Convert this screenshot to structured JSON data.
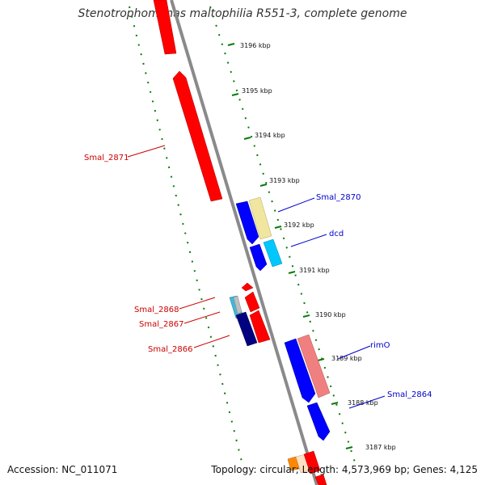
{
  "title": "Stenotrophomonas maltophilia R551-3, complete genome",
  "footer": {
    "accession": "Accession: NC_011071",
    "stats": "Topology: circular; Length: 4,573,969 bp; Genes: 4,125"
  },
  "ticks": [
    "3196 kbp",
    "3195 kbp",
    "3194 kbp",
    "3193 kbp",
    "3192 kbp",
    "3191 kbp",
    "3190 kbp",
    "3189 kbp",
    "3188 kbp",
    "3187 kbp"
  ],
  "labels": {
    "Smal_2871": "Smal_2871",
    "Smal_2870": "Smal_2870",
    "dcd": "dcd",
    "Smal_2868": "Smal_2868",
    "Smal_2867": "Smal_2867",
    "Smal_2866": "Smal_2866",
    "rimO": "rimO",
    "Smal_2864": "Smal_2864"
  },
  "colors": {
    "reverse_cds": "#ff0000",
    "forward_cds": "#0000ff",
    "cyan_cds": "#00c8ff",
    "pale_cds": "#f0e6a0",
    "navy_cds": "#000080",
    "pink_cds": "#f08080",
    "backbone": "#808080",
    "ticks": "#007700"
  }
}
